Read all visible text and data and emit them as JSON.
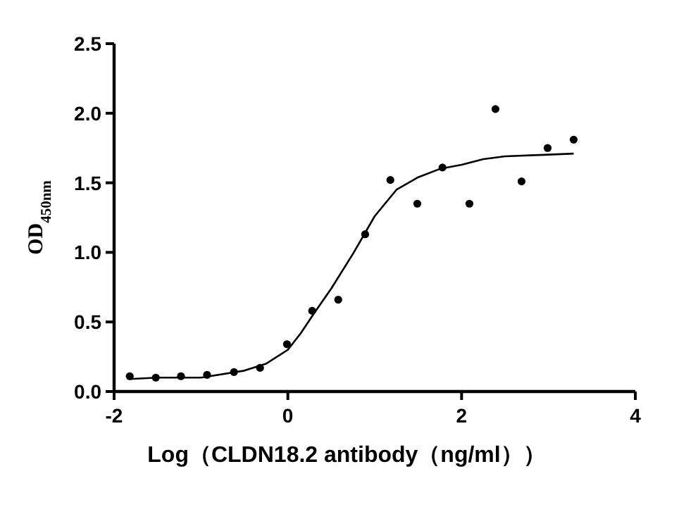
{
  "chart_data": {
    "type": "scatter",
    "xlabel": "Log（CLDN18.2 antibody（ng/ml））",
    "ylabel": "OD$_{450nm}$",
    "xlim": [
      -2,
      4
    ],
    "xticks": [
      -2,
      0,
      2,
      4
    ],
    "ylim": [
      0,
      2.5
    ],
    "yticks": [
      {
        "value": 0,
        "label": "0.0"
      },
      0.5,
      {
        "value": 1,
        "label": "1.0"
      },
      1.5,
      {
        "value": 2,
        "label": "2.0"
      },
      2.5
    ],
    "grid": false,
    "marker": "circle",
    "series": [
      {
        "color": "#000000",
        "x": [
          -1.82,
          -1.52,
          -1.23,
          -0.93,
          -0.62,
          -0.32,
          -0.01,
          0.28,
          0.58,
          0.89,
          1.18,
          1.49,
          1.78,
          2.09,
          2.39,
          2.69,
          2.99,
          3.29
        ],
        "values": [
          0.11,
          0.1,
          0.11,
          0.12,
          0.14,
          0.17,
          0.34,
          0.58,
          0.66,
          1.13,
          1.52,
          1.35,
          1.61,
          1.35,
          2.03,
          1.51,
          1.75,
          1.81
        ]
      },
      {
        "type": "line",
        "color": "#000000",
        "marker": "none",
        "line_style": "solid",
        "x": [
          -1.82,
          -1.5,
          -1,
          -0.5,
          -0.25,
          0,
          0.15,
          0.3,
          0.5,
          0.75,
          1,
          1.25,
          1.5,
          1.75,
          2,
          2.25,
          2.5,
          2.9,
          3.29
        ],
        "values": [
          0.09,
          0.1,
          0.1,
          0.15,
          0.2,
          0.3,
          0.42,
          0.56,
          0.74,
          0.99,
          1.26,
          1.45,
          1.54,
          1.6,
          1.63,
          1.67,
          1.69,
          1.7,
          1.71
        ]
      }
    ]
  }
}
